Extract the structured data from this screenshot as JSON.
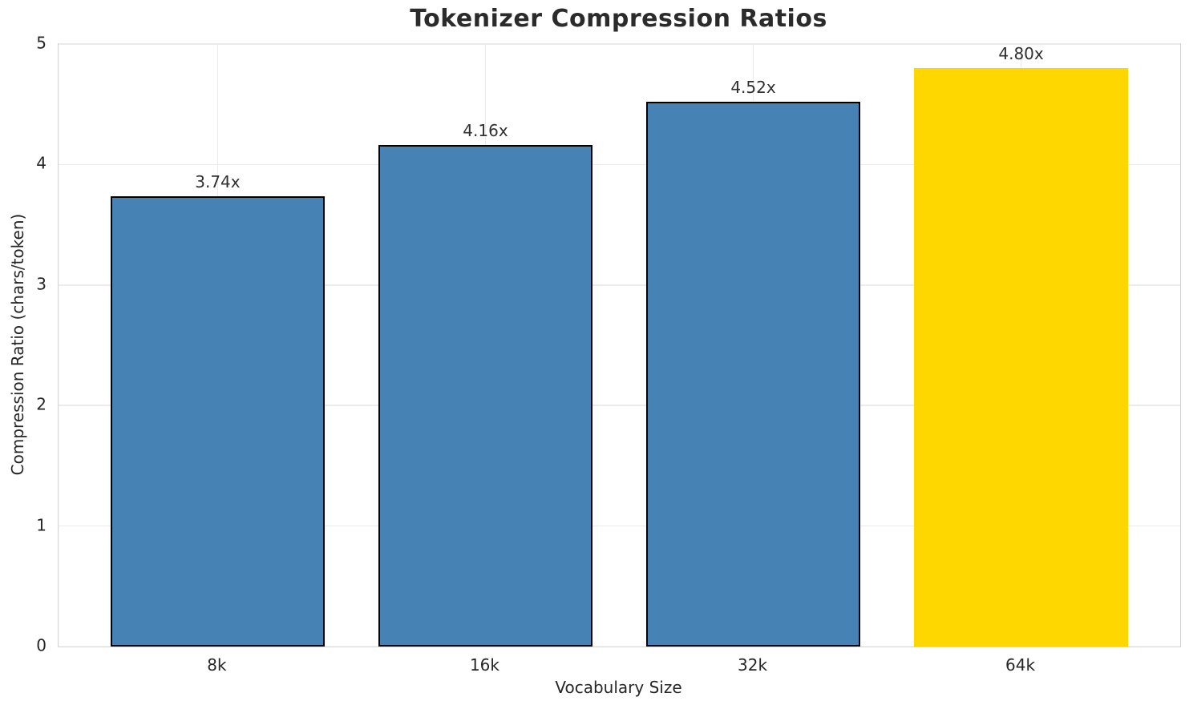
{
  "chart_data": {
    "type": "bar",
    "title": "Tokenizer Compression Ratios",
    "xlabel": "Vocabulary Size",
    "ylabel": "Compression Ratio (chars/token)",
    "categories": [
      "8k",
      "16k",
      "32k",
      "64k"
    ],
    "values": [
      3.74,
      4.16,
      4.52,
      4.8
    ],
    "bar_labels": [
      "3.74x",
      "4.16x",
      "4.52x",
      "4.80x"
    ],
    "ylim": [
      0,
      5
    ],
    "yticks": [
      "0",
      "1",
      "2",
      "3",
      "4",
      "5"
    ],
    "grid": "both",
    "legend_position": "none",
    "bar_colors": [
      "#4682B4",
      "#4682B4",
      "#4682B4",
      "#FFD700"
    ],
    "bar_edge_colors": [
      "#000000",
      "#000000",
      "#000000",
      "none"
    ],
    "highlight_index": 3,
    "bar_width_fraction": 0.8
  },
  "colors": {
    "steel_blue": "#4682B4",
    "gold": "#FFD700",
    "bar_edge": "#000000",
    "grid": "#ebebeb",
    "spine": "#d2d2d2",
    "text": "#262626"
  }
}
